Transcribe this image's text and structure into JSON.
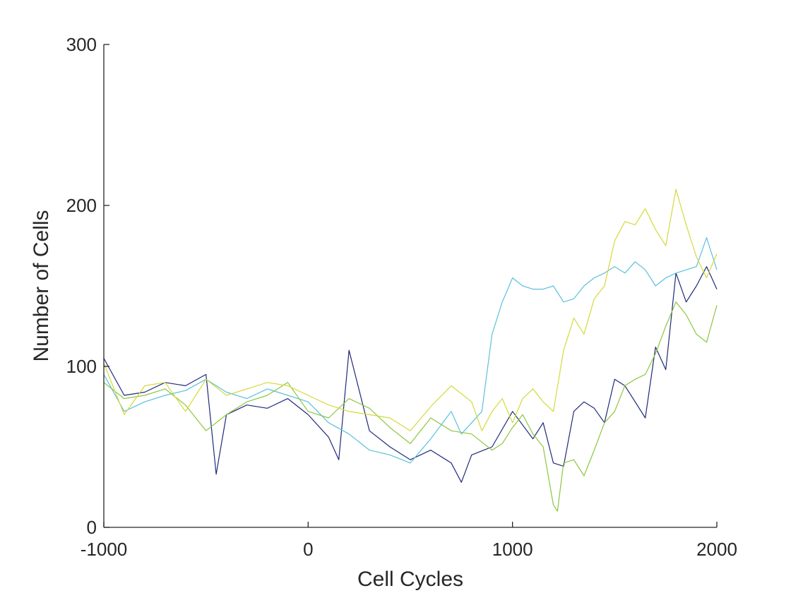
{
  "chart_data": {
    "type": "line",
    "title": "",
    "xlabel": "Cell Cycles",
    "ylabel": "Number of Cells",
    "xlim": [
      -1000,
      2000
    ],
    "ylim": [
      0,
      300
    ],
    "xticks": [
      -1000,
      0,
      1000,
      2000
    ],
    "yticks": [
      0,
      100,
      200,
      300
    ],
    "xtick_labels": [
      "-1000",
      "0",
      "1000",
      "2000"
    ],
    "ytick_labels": [
      "0",
      "100",
      "200",
      "300"
    ],
    "grid": false,
    "legend": "none",
    "series": [
      {
        "color": "#1f2a7a",
        "x": [
          -1000,
          -900,
          -800,
          -700,
          -600,
          -500,
          -450,
          -400,
          -300,
          -200,
          -100,
          0,
          100,
          150,
          200,
          300,
          400,
          500,
          600,
          700,
          750,
          800,
          900,
          1000,
          1100,
          1150,
          1200,
          1250,
          1300,
          1350,
          1400,
          1450,
          1500,
          1550,
          1600,
          1650,
          1700,
          1750,
          1800,
          1850,
          1900,
          1950,
          2000
        ],
        "values": [
          105,
          82,
          84,
          90,
          88,
          95,
          33,
          70,
          76,
          74,
          80,
          70,
          56,
          42,
          110,
          60,
          50,
          42,
          48,
          40,
          28,
          45,
          50,
          72,
          55,
          65,
          40,
          38,
          72,
          78,
          74,
          65,
          92,
          88,
          78,
          68,
          112,
          98,
          158,
          140,
          150,
          162,
          148
        ]
      },
      {
        "color": "#5bc0de",
        "x": [
          -1000,
          -900,
          -800,
          -700,
          -600,
          -500,
          -400,
          -300,
          -200,
          -100,
          0,
          100,
          200,
          300,
          400,
          500,
          600,
          700,
          750,
          800,
          850,
          900,
          950,
          1000,
          1050,
          1100,
          1150,
          1200,
          1250,
          1300,
          1350,
          1400,
          1450,
          1500,
          1550,
          1600,
          1650,
          1700,
          1750,
          1800,
          1850,
          1900,
          1950,
          2000
        ],
        "values": [
          95,
          72,
          78,
          82,
          85,
          92,
          84,
          80,
          86,
          82,
          78,
          65,
          58,
          48,
          45,
          40,
          55,
          72,
          58,
          65,
          72,
          120,
          140,
          155,
          150,
          148,
          148,
          150,
          140,
          142,
          150,
          155,
          158,
          162,
          158,
          165,
          160,
          150,
          155,
          158,
          160,
          162,
          180,
          160
        ]
      },
      {
        "color": "#8cc63f",
        "x": [
          -1000,
          -900,
          -800,
          -700,
          -600,
          -500,
          -400,
          -300,
          -200,
          -100,
          0,
          100,
          200,
          300,
          400,
          500,
          600,
          700,
          800,
          900,
          950,
          1000,
          1050,
          1100,
          1150,
          1200,
          1220,
          1250,
          1300,
          1350,
          1400,
          1450,
          1500,
          1550,
          1600,
          1650,
          1700,
          1750,
          1800,
          1850,
          1900,
          1950,
          2000
        ],
        "values": [
          90,
          80,
          82,
          86,
          76,
          60,
          70,
          78,
          82,
          90,
          72,
          68,
          80,
          74,
          62,
          52,
          68,
          60,
          58,
          48,
          52,
          62,
          70,
          58,
          50,
          14,
          10,
          40,
          42,
          32,
          48,
          65,
          72,
          88,
          92,
          95,
          108,
          125,
          140,
          132,
          120,
          115,
          138
        ]
      },
      {
        "color": "#d4d93a",
        "x": [
          -1000,
          -900,
          -800,
          -700,
          -600,
          -500,
          -400,
          -300,
          -200,
          -100,
          0,
          100,
          200,
          300,
          400,
          500,
          600,
          700,
          800,
          850,
          900,
          950,
          1000,
          1050,
          1100,
          1150,
          1200,
          1250,
          1300,
          1350,
          1400,
          1450,
          1500,
          1550,
          1600,
          1650,
          1700,
          1750,
          1800,
          1850,
          1900,
          1950,
          2000
        ],
        "values": [
          102,
          70,
          88,
          90,
          72,
          92,
          82,
          86,
          90,
          88,
          82,
          76,
          72,
          70,
          68,
          60,
          75,
          88,
          78,
          60,
          72,
          80,
          65,
          80,
          86,
          78,
          72,
          110,
          130,
          120,
          142,
          150,
          178,
          190,
          188,
          198,
          185,
          175,
          210,
          188,
          168,
          155,
          170
        ]
      }
    ]
  }
}
